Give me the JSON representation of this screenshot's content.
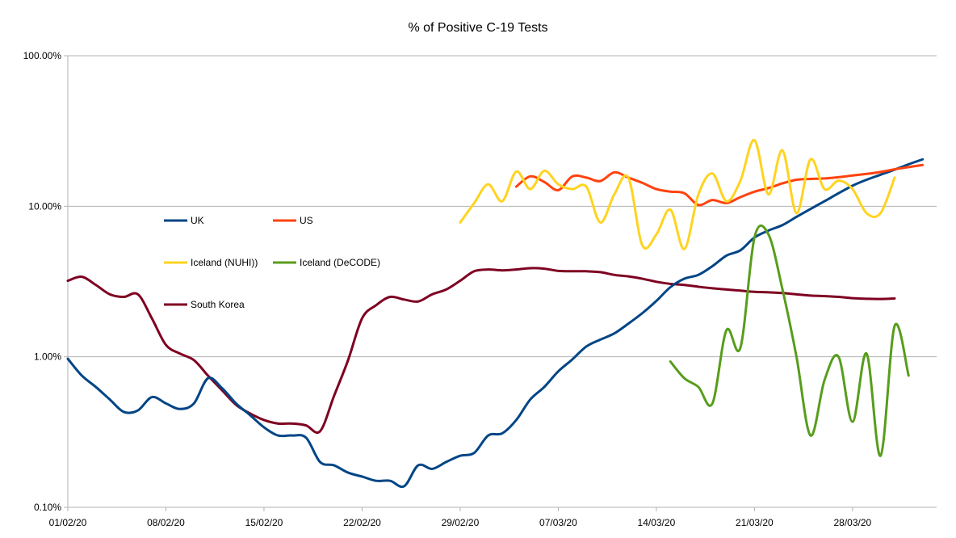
{
  "chart_data": {
    "type": "line",
    "title": "% of Positive C-19 Tests",
    "xlabel": "",
    "ylabel": "",
    "y_scale": "log",
    "ylim": [
      0.001,
      1
    ],
    "y_ticks": [
      {
        "value": 0.001,
        "label": "0.10%"
      },
      {
        "value": 0.01,
        "label": "1.00%"
      },
      {
        "value": 0.1,
        "label": "10.00%"
      },
      {
        "value": 1,
        "label": "100.00%"
      }
    ],
    "x_start": "2020-02-01",
    "x_end": "2020-04-03",
    "x_ticks": [
      {
        "date": "2020-02-01",
        "label": "01/02/20"
      },
      {
        "date": "2020-02-08",
        "label": "08/02/20"
      },
      {
        "date": "2020-02-15",
        "label": "15/02/20"
      },
      {
        "date": "2020-02-22",
        "label": "22/02/20"
      },
      {
        "date": "2020-02-29",
        "label": "29/02/20"
      },
      {
        "date": "2020-03-07",
        "label": "07/03/20"
      },
      {
        "date": "2020-03-14",
        "label": "14/03/20"
      },
      {
        "date": "2020-03-21",
        "label": "21/03/20"
      },
      {
        "date": "2020-03-28",
        "label": "28/03/20"
      }
    ],
    "grid": "horizontal",
    "legend_position": "left-inside",
    "series": [
      {
        "name": "UK",
        "color": "#004586",
        "points": [
          [
            "2020-02-01",
            0.0097
          ],
          [
            "2020-02-02",
            0.0075
          ],
          [
            "2020-02-03",
            0.0063
          ],
          [
            "2020-02-04",
            0.0052
          ],
          [
            "2020-02-05",
            0.0043
          ],
          [
            "2020-02-06",
            0.0044
          ],
          [
            "2020-02-07",
            0.0054
          ],
          [
            "2020-02-08",
            0.0049
          ],
          [
            "2020-02-09",
            0.0045
          ],
          [
            "2020-02-10",
            0.0049
          ],
          [
            "2020-02-11",
            0.0072
          ],
          [
            "2020-02-12",
            0.0062
          ],
          [
            "2020-02-13",
            0.0049
          ],
          [
            "2020-02-14",
            0.0041
          ],
          [
            "2020-02-15",
            0.0034
          ],
          [
            "2020-02-16",
            0.003
          ],
          [
            "2020-02-17",
            0.003
          ],
          [
            "2020-02-18",
            0.0029
          ],
          [
            "2020-02-19",
            0.002
          ],
          [
            "2020-02-20",
            0.0019
          ],
          [
            "2020-02-21",
            0.0017
          ],
          [
            "2020-02-22",
            0.0016
          ],
          [
            "2020-02-23",
            0.0015
          ],
          [
            "2020-02-24",
            0.0015
          ],
          [
            "2020-02-25",
            0.00138
          ],
          [
            "2020-02-26",
            0.0019
          ],
          [
            "2020-02-27",
            0.0018
          ],
          [
            "2020-02-28",
            0.002
          ],
          [
            "2020-02-29",
            0.0022
          ],
          [
            "2020-03-01",
            0.0023
          ],
          [
            "2020-03-02",
            0.003
          ],
          [
            "2020-03-03",
            0.0031
          ],
          [
            "2020-03-04",
            0.0038
          ],
          [
            "2020-03-05",
            0.0052
          ],
          [
            "2020-03-06",
            0.0063
          ],
          [
            "2020-03-07",
            0.008
          ],
          [
            "2020-03-08",
            0.0096
          ],
          [
            "2020-03-09",
            0.0117
          ],
          [
            "2020-03-10",
            0.013
          ],
          [
            "2020-03-11",
            0.0143
          ],
          [
            "2020-03-12",
            0.0166
          ],
          [
            "2020-03-13",
            0.0195
          ],
          [
            "2020-03-14",
            0.0235
          ],
          [
            "2020-03-15",
            0.029
          ],
          [
            "2020-03-16",
            0.033
          ],
          [
            "2020-03-17",
            0.035
          ],
          [
            "2020-03-18",
            0.04
          ],
          [
            "2020-03-19",
            0.047
          ],
          [
            "2020-03-20",
            0.051
          ],
          [
            "2020-03-21",
            0.062
          ],
          [
            "2020-03-22",
            0.069
          ],
          [
            "2020-03-23",
            0.075
          ],
          [
            "2020-03-24",
            0.085
          ],
          [
            "2020-03-25",
            0.096
          ],
          [
            "2020-03-26",
            0.108
          ],
          [
            "2020-03-27",
            0.122
          ],
          [
            "2020-03-28",
            0.137
          ],
          [
            "2020-03-29",
            0.15
          ],
          [
            "2020-03-30",
            0.162
          ],
          [
            "2020-03-31",
            0.175
          ],
          [
            "2020-04-01",
            0.19
          ],
          [
            "2020-04-02",
            0.205
          ]
        ]
      },
      {
        "name": "US",
        "color": "#ff420e",
        "points": [
          [
            "2020-03-04",
            0.135
          ],
          [
            "2020-03-05",
            0.158
          ],
          [
            "2020-03-06",
            0.145
          ],
          [
            "2020-03-07",
            0.128
          ],
          [
            "2020-03-08",
            0.158
          ],
          [
            "2020-03-09",
            0.155
          ],
          [
            "2020-03-10",
            0.147
          ],
          [
            "2020-03-11",
            0.168
          ],
          [
            "2020-03-12",
            0.155
          ],
          [
            "2020-03-13",
            0.143
          ],
          [
            "2020-03-14",
            0.13
          ],
          [
            "2020-03-15",
            0.125
          ],
          [
            "2020-03-16",
            0.122
          ],
          [
            "2020-03-17",
            0.102
          ],
          [
            "2020-03-18",
            0.11
          ],
          [
            "2020-03-19",
            0.105
          ],
          [
            "2020-03-20",
            0.115
          ],
          [
            "2020-03-21",
            0.125
          ],
          [
            "2020-03-22",
            0.132
          ],
          [
            "2020-03-23",
            0.142
          ],
          [
            "2020-03-24",
            0.15
          ],
          [
            "2020-03-25",
            0.152
          ],
          [
            "2020-03-26",
            0.153
          ],
          [
            "2020-03-27",
            0.156
          ],
          [
            "2020-03-28",
            0.16
          ],
          [
            "2020-03-29",
            0.164
          ],
          [
            "2020-03-30",
            0.169
          ],
          [
            "2020-03-31",
            0.176
          ],
          [
            "2020-04-01",
            0.182
          ],
          [
            "2020-04-02",
            0.188
          ]
        ]
      },
      {
        "name": "Iceland (NUHI))",
        "color": "#ffd320",
        "points": [
          [
            "2020-02-29",
            0.078
          ],
          [
            "2020-03-01",
            0.105
          ],
          [
            "2020-03-02",
            0.14
          ],
          [
            "2020-03-03",
            0.108
          ],
          [
            "2020-03-04",
            0.17
          ],
          [
            "2020-03-05",
            0.13
          ],
          [
            "2020-03-06",
            0.172
          ],
          [
            "2020-03-07",
            0.14
          ],
          [
            "2020-03-08",
            0.13
          ],
          [
            "2020-03-09",
            0.135
          ],
          [
            "2020-03-10",
            0.078
          ],
          [
            "2020-03-11",
            0.12
          ],
          [
            "2020-03-12",
            0.155
          ],
          [
            "2020-03-13",
            0.055
          ],
          [
            "2020-03-14",
            0.065
          ],
          [
            "2020-03-15",
            0.095
          ],
          [
            "2020-03-16",
            0.052
          ],
          [
            "2020-03-17",
            0.12
          ],
          [
            "2020-03-18",
            0.165
          ],
          [
            "2020-03-19",
            0.108
          ],
          [
            "2020-03-20",
            0.148
          ],
          [
            "2020-03-21",
            0.275
          ],
          [
            "2020-03-22",
            0.12
          ],
          [
            "2020-03-23",
            0.235
          ],
          [
            "2020-03-24",
            0.09
          ],
          [
            "2020-03-25",
            0.205
          ],
          [
            "2020-03-26",
            0.13
          ],
          [
            "2020-03-27",
            0.148
          ],
          [
            "2020-03-28",
            0.13
          ],
          [
            "2020-03-29",
            0.09
          ],
          [
            "2020-03-30",
            0.09
          ],
          [
            "2020-03-31",
            0.155
          ]
        ]
      },
      {
        "name": "Iceland (DeCODE)",
        "color": "#579d1c",
        "points": [
          [
            "2020-03-15",
            0.0093
          ],
          [
            "2020-03-16",
            0.0072
          ],
          [
            "2020-03-17",
            0.0063
          ],
          [
            "2020-03-18",
            0.0049
          ],
          [
            "2020-03-19",
            0.015
          ],
          [
            "2020-03-20",
            0.0115
          ],
          [
            "2020-03-21",
            0.062
          ],
          [
            "2020-03-22",
            0.065
          ],
          [
            "2020-03-23",
            0.028
          ],
          [
            "2020-03-24",
            0.01
          ],
          [
            "2020-03-25",
            0.003
          ],
          [
            "2020-03-26",
            0.007
          ],
          [
            "2020-03-27",
            0.01
          ],
          [
            "2020-03-28",
            0.0037
          ],
          [
            "2020-03-29",
            0.0105
          ],
          [
            "2020-03-30",
            0.0022
          ],
          [
            "2020-03-31",
            0.016
          ],
          [
            "2020-04-01",
            0.0075
          ]
        ]
      },
      {
        "name": "South Korea",
        "color": "#7e0021",
        "points": [
          [
            "2020-02-01",
            0.032
          ],
          [
            "2020-02-02",
            0.034
          ],
          [
            "2020-02-03",
            0.03
          ],
          [
            "2020-02-04",
            0.026
          ],
          [
            "2020-02-05",
            0.025
          ],
          [
            "2020-02-06",
            0.026
          ],
          [
            "2020-02-07",
            0.018
          ],
          [
            "2020-02-08",
            0.012
          ],
          [
            "2020-02-09",
            0.0105
          ],
          [
            "2020-02-10",
            0.0095
          ],
          [
            "2020-02-11",
            0.0075
          ],
          [
            "2020-02-12",
            0.006
          ],
          [
            "2020-02-13",
            0.0048
          ],
          [
            "2020-02-14",
            0.0042
          ],
          [
            "2020-02-15",
            0.0038
          ],
          [
            "2020-02-16",
            0.0036
          ],
          [
            "2020-02-17",
            0.0036
          ],
          [
            "2020-02-18",
            0.0035
          ],
          [
            "2020-02-19",
            0.0032
          ],
          [
            "2020-02-20",
            0.0055
          ],
          [
            "2020-02-21",
            0.0095
          ],
          [
            "2020-02-22",
            0.018
          ],
          [
            "2020-02-23",
            0.022
          ],
          [
            "2020-02-24",
            0.025
          ],
          [
            "2020-02-25",
            0.024
          ],
          [
            "2020-02-26",
            0.0233
          ],
          [
            "2020-02-27",
            0.026
          ],
          [
            "2020-02-28",
            0.028
          ],
          [
            "2020-02-29",
            0.032
          ],
          [
            "2020-03-01",
            0.037
          ],
          [
            "2020-03-02",
            0.038
          ],
          [
            "2020-03-03",
            0.0375
          ],
          [
            "2020-03-04",
            0.038
          ],
          [
            "2020-03-05",
            0.0388
          ],
          [
            "2020-03-06",
            0.0385
          ],
          [
            "2020-03-07",
            0.0372
          ],
          [
            "2020-03-08",
            0.037
          ],
          [
            "2020-03-09",
            0.037
          ],
          [
            "2020-03-10",
            0.0365
          ],
          [
            "2020-03-11",
            0.035
          ],
          [
            "2020-03-12",
            0.0342
          ],
          [
            "2020-03-13",
            0.033
          ],
          [
            "2020-03-14",
            0.0315
          ],
          [
            "2020-03-15",
            0.0305
          ],
          [
            "2020-03-16",
            0.03
          ],
          [
            "2020-03-17",
            0.0292
          ],
          [
            "2020-03-18",
            0.0285
          ],
          [
            "2020-03-19",
            0.028
          ],
          [
            "2020-03-20",
            0.0275
          ],
          [
            "2020-03-21",
            0.027
          ],
          [
            "2020-03-22",
            0.0268
          ],
          [
            "2020-03-23",
            0.0265
          ],
          [
            "2020-03-24",
            0.026
          ],
          [
            "2020-03-25",
            0.0255
          ],
          [
            "2020-03-26",
            0.0253
          ],
          [
            "2020-03-27",
            0.025
          ],
          [
            "2020-03-28",
            0.0245
          ],
          [
            "2020-03-29",
            0.0243
          ],
          [
            "2020-03-30",
            0.0242
          ],
          [
            "2020-03-31",
            0.0244
          ]
        ]
      }
    ],
    "legend_order": [
      "UK",
      "US",
      "Iceland (NUHI))",
      "Iceland (DeCODE)",
      "South Korea"
    ]
  }
}
